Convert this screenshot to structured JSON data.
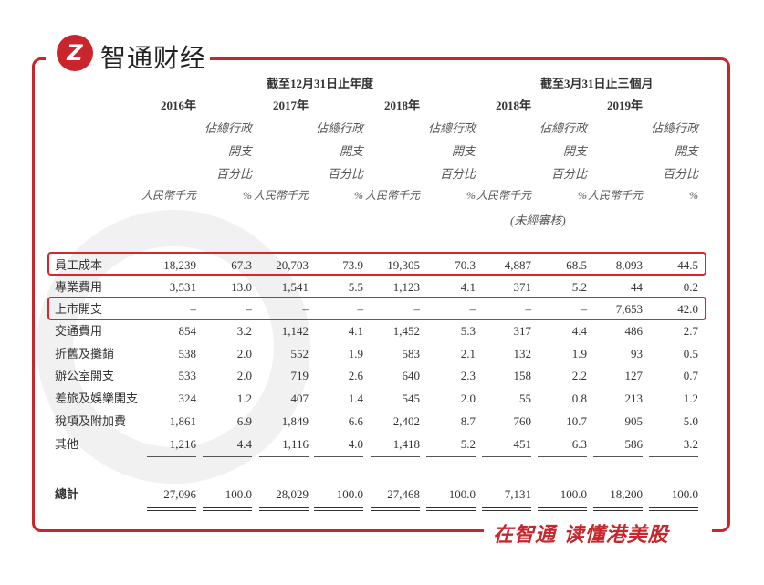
{
  "brand": {
    "logo_mark": "Z",
    "name": "智通财经",
    "slogan": "在智通 读懂港美股",
    "watermark": "智通财经",
    "accent": "#c9252c"
  },
  "header": {
    "group1": "截至12月31日止年度",
    "group2": "截至3月31日止三個月",
    "years": [
      "2016年",
      "2017年",
      "2018年",
      "2018年",
      "2019年"
    ],
    "pct_line1": "佔總行政",
    "pct_line2": "開支",
    "pct_line3": "百分比",
    "unit": "人民幣千元",
    "pct": "%",
    "unaudited": "(未經審核)"
  },
  "rows": [
    {
      "label": "員工成本",
      "values": [
        "18,239",
        "67.3",
        "20,703",
        "73.9",
        "19,305",
        "70.3",
        "4,887",
        "68.5",
        "8,093",
        "44.5"
      ],
      "highlighted": true
    },
    {
      "label": "專業費用",
      "values": [
        "3,531",
        "13.0",
        "1,541",
        "5.5",
        "1,123",
        "4.1",
        "371",
        "5.2",
        "44",
        "0.2"
      ]
    },
    {
      "label": "上市開支",
      "values": [
        "–",
        "–",
        "–",
        "–",
        "–",
        "–",
        "–",
        "–",
        "7,653",
        "42.0"
      ],
      "highlighted": true
    },
    {
      "label": "交通費用",
      "values": [
        "854",
        "3.2",
        "1,142",
        "4.1",
        "1,452",
        "5.3",
        "317",
        "4.4",
        "486",
        "2.7"
      ]
    },
    {
      "label": "折舊及攤銷",
      "values": [
        "538",
        "2.0",
        "552",
        "1.9",
        "583",
        "2.1",
        "132",
        "1.9",
        "93",
        "0.5"
      ]
    },
    {
      "label": "辦公室開支",
      "values": [
        "533",
        "2.0",
        "719",
        "2.6",
        "640",
        "2.3",
        "158",
        "2.2",
        "127",
        "0.7"
      ]
    },
    {
      "label": "差旅及娛樂開支",
      "values": [
        "324",
        "1.2",
        "407",
        "1.4",
        "545",
        "2.0",
        "55",
        "0.8",
        "213",
        "1.2"
      ]
    },
    {
      "label": "稅項及附加費",
      "values": [
        "1,861",
        "6.9",
        "1,849",
        "6.6",
        "2,402",
        "8.7",
        "760",
        "10.7",
        "905",
        "5.0"
      ]
    },
    {
      "label": "其他",
      "values": [
        "1,216",
        "4.4",
        "1,116",
        "4.0",
        "1,418",
        "5.2",
        "451",
        "6.3",
        "586",
        "3.2"
      ]
    }
  ],
  "total": {
    "label": "總計",
    "values": [
      "27,096",
      "100.0",
      "28,029",
      "100.0",
      "27,468",
      "100.0",
      "7,131",
      "100.0",
      "18,200",
      "100.0"
    ]
  }
}
